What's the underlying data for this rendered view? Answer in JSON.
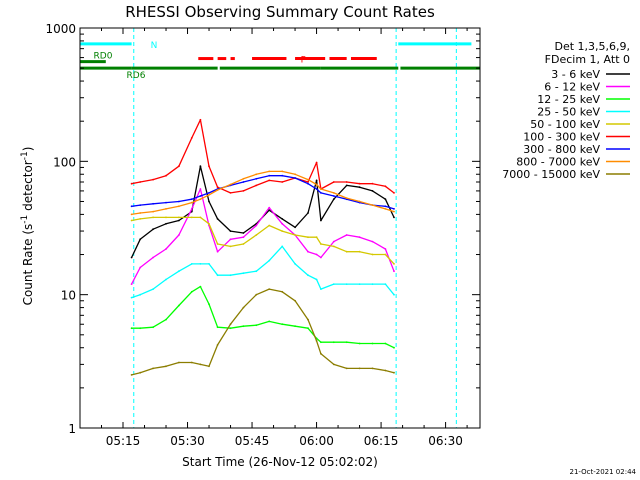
{
  "chart_data": {
    "type": "line",
    "title": "RHESSI Observing Summary Count Rates",
    "xlabel": "Start Time (26-Nov-12 05:02:02)",
    "ylabel": "Count Rate (s⁻¹ detector⁻¹)",
    "ylabel_parts": {
      "main": "Count Rate (s",
      "sup1": "-1",
      "mid": " detector",
      "sup2": "-1",
      "end": ")"
    },
    "scale_y": "log",
    "xlim_minutes": [
      5.0,
      98.0
    ],
    "ylim": [
      1,
      1000
    ],
    "x_ticks": [
      {
        "label": "05:15",
        "minute": 15
      },
      {
        "label": "05:30",
        "minute": 30
      },
      {
        "label": "05:45",
        "minute": 45
      },
      {
        "label": "06:00",
        "minute": 60
      },
      {
        "label": "06:15",
        "minute": 75
      },
      {
        "label": "06:30",
        "minute": 90
      }
    ],
    "y_ticks": [
      {
        "label": "1",
        "value": 1
      },
      {
        "label": "10",
        "value": 10
      },
      {
        "label": "100",
        "value": 100
      },
      {
        "label": "1000",
        "value": 1000
      }
    ],
    "legend": {
      "position": "right",
      "header": [
        "Det 1,3,5,6,9,",
        "FDecim 1, Att 0"
      ],
      "entries": [
        {
          "name": "3 - 6 keV",
          "color": "#000000"
        },
        {
          "name": "6 - 12 keV",
          "color": "#ff00ff"
        },
        {
          "name": "12 - 25 keV",
          "color": "#00ff00"
        },
        {
          "name": "25 - 50 keV",
          "color": "#00ffff"
        },
        {
          "name": "50 - 100 keV",
          "color": "#d4c800"
        },
        {
          "name": "100 - 300 keV",
          "color": "#ff0000"
        },
        {
          "name": "300 - 800 keV",
          "color": "#0000ff"
        },
        {
          "name": "800 - 7000 keV",
          "color": "#ff8c00"
        },
        {
          "name": "7000 - 15000 keV",
          "color": "#8b7d00"
        }
      ]
    },
    "series": [
      {
        "name": "3 - 6 keV",
        "color": "#000000",
        "x": [
          17,
          19,
          22,
          25,
          28,
          31,
          33,
          35,
          37,
          40,
          43,
          46,
          49,
          52,
          55,
          58,
          60,
          61,
          64,
          67,
          70,
          73,
          76,
          78
        ],
        "y": [
          19,
          26,
          31,
          34,
          36,
          42,
          92,
          50,
          37,
          30,
          29,
          34,
          43,
          37,
          32,
          41,
          72,
          36,
          52,
          66,
          64,
          60,
          52,
          38
        ]
      },
      {
        "name": "6 - 12 keV",
        "color": "#ff00ff",
        "x": [
          17,
          19,
          22,
          25,
          28,
          31,
          33,
          35,
          37,
          40,
          43,
          46,
          49,
          52,
          55,
          58,
          60,
          61,
          64,
          67,
          70,
          73,
          76,
          78
        ],
        "y": [
          12,
          16,
          19,
          22,
          28,
          44,
          62,
          33,
          21,
          26,
          27,
          33,
          45,
          34,
          28,
          21,
          20,
          19,
          25,
          28,
          27,
          25,
          22,
          15
        ]
      },
      {
        "name": "12 - 25 keV",
        "color": "#00ff00",
        "x": [
          17,
          19,
          22,
          25,
          28,
          31,
          33,
          35,
          37,
          40,
          43,
          46,
          49,
          52,
          55,
          58,
          60,
          61,
          64,
          67,
          70,
          73,
          76,
          78
        ],
        "y": [
          5.6,
          5.6,
          5.7,
          6.5,
          8.3,
          10.5,
          11.5,
          8.5,
          5.7,
          5.6,
          5.8,
          5.9,
          6.3,
          6.0,
          5.8,
          5.6,
          4.7,
          4.4,
          4.4,
          4.4,
          4.3,
          4.3,
          4.3,
          4.0
        ]
      },
      {
        "name": "25 - 50 keV",
        "color": "#00ffff",
        "x": [
          17,
          19,
          22,
          25,
          28,
          31,
          33,
          35,
          37,
          40,
          43,
          46,
          49,
          52,
          55,
          58,
          60,
          61,
          64,
          67,
          70,
          73,
          76,
          78
        ],
        "y": [
          9.5,
          10,
          11,
          13,
          15,
          17,
          17,
          17,
          14,
          14,
          14.5,
          15,
          18,
          23,
          17,
          14,
          13,
          11,
          12,
          12,
          12,
          12,
          12,
          10
        ]
      },
      {
        "name": "50 - 100 keV",
        "color": "#d4c800",
        "x": [
          17,
          19,
          22,
          25,
          28,
          31,
          33,
          35,
          37,
          40,
          43,
          46,
          49,
          52,
          55,
          58,
          60,
          61,
          64,
          67,
          70,
          73,
          76,
          78
        ],
        "y": [
          36,
          37,
          38,
          38,
          38,
          38,
          38,
          34,
          24,
          23,
          24,
          28,
          33,
          30,
          28,
          27,
          27,
          24,
          23,
          21,
          21,
          20,
          20,
          17
        ]
      },
      {
        "name": "100 - 300 keV",
        "color": "#ff0000",
        "x": [
          17,
          19,
          22,
          25,
          28,
          31,
          33,
          35,
          37,
          40,
          43,
          46,
          49,
          52,
          55,
          58,
          60,
          61,
          64,
          67,
          70,
          73,
          76,
          78
        ],
        "y": [
          68,
          70,
          73,
          78,
          92,
          150,
          205,
          92,
          64,
          58,
          60,
          66,
          72,
          70,
          75,
          70,
          98,
          62,
          70,
          70,
          68,
          68,
          65,
          58
        ]
      },
      {
        "name": "300 - 800 keV",
        "color": "#0000ff",
        "x": [
          17,
          19,
          22,
          25,
          28,
          31,
          33,
          35,
          37,
          40,
          43,
          46,
          49,
          52,
          55,
          58,
          60,
          61,
          64,
          67,
          70,
          73,
          76,
          78
        ],
        "y": [
          46,
          47,
          48,
          49,
          50,
          52,
          55,
          58,
          62,
          66,
          70,
          74,
          78,
          78,
          75,
          68,
          62,
          58,
          55,
          52,
          49,
          47,
          46,
          44
        ]
      },
      {
        "name": "800 - 7000 keV",
        "color": "#ff8c00",
        "x": [
          17,
          19,
          22,
          25,
          28,
          31,
          33,
          35,
          37,
          40,
          43,
          46,
          49,
          52,
          55,
          58,
          60,
          61,
          64,
          67,
          70,
          73,
          76,
          78
        ],
        "y": [
          40,
          41,
          42,
          44,
          46,
          49,
          52,
          56,
          61,
          67,
          74,
          80,
          84,
          84,
          80,
          73,
          67,
          62,
          58,
          53,
          50,
          47,
          44,
          42
        ]
      },
      {
        "name": "7000 - 15000 keV",
        "color": "#8b7d00",
        "x": [
          17,
          19,
          22,
          25,
          28,
          31,
          33,
          35,
          37,
          40,
          43,
          46,
          49,
          52,
          55,
          58,
          60,
          61,
          64,
          67,
          70,
          73,
          76,
          78
        ],
        "y": [
          2.5,
          2.6,
          2.8,
          2.9,
          3.1,
          3.1,
          3.0,
          2.9,
          4.2,
          6.0,
          8.0,
          10.0,
          11.0,
          10.5,
          9.0,
          6.5,
          4.5,
          3.6,
          3.0,
          2.8,
          2.8,
          2.8,
          2.7,
          2.6
        ]
      }
    ],
    "annotations": [
      {
        "label": "N",
        "color": "#00ffff",
        "y": 760,
        "segments": [
          [
            5,
            17
          ],
          [
            79,
            96
          ]
        ]
      },
      {
        "label": "F",
        "color": "#ff0000",
        "y": 590,
        "segments": [
          [
            32.5,
            36
          ],
          [
            37,
            39
          ],
          [
            40,
            41
          ],
          [
            45,
            53
          ],
          [
            55,
            62
          ],
          [
            63,
            67
          ],
          [
            68,
            74
          ]
        ]
      },
      {
        "label": "RD0",
        "color": "#008000",
        "y": 560,
        "segments": [
          [
            5,
            11
          ]
        ]
      },
      {
        "label": "RD6",
        "color": "#008000",
        "y": 500,
        "segments": [
          [
            5,
            17
          ],
          [
            17,
            37
          ],
          [
            37.5,
            61
          ],
          [
            61,
            79
          ],
          [
            79.5,
            98
          ]
        ]
      }
    ],
    "vlines_minutes": [
      {
        "x": 17.5,
        "color": "#00ffff"
      },
      {
        "x": 78.5,
        "color": "#00ffff"
      },
      {
        "x": 92.5,
        "color": "#00ffff"
      }
    ],
    "grid": false,
    "timestamp": "21-Oct-2021 02:44"
  }
}
